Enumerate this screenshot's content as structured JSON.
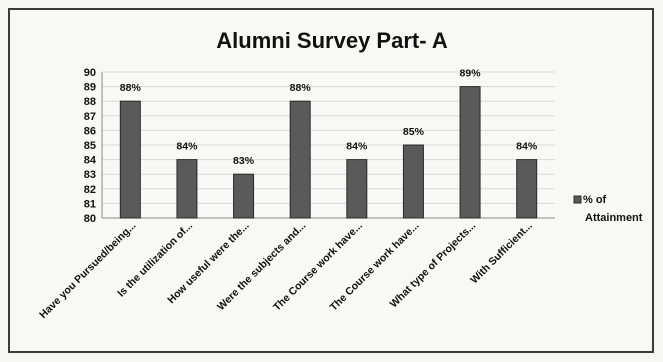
{
  "chart_data": {
    "type": "bar",
    "title": "Alumni Survey Part- A",
    "xlabel": "",
    "ylabel": "",
    "ylim": [
      80,
      90
    ],
    "yticks": [
      80,
      81,
      82,
      83,
      84,
      85,
      86,
      87,
      88,
      89,
      90
    ],
    "grid": true,
    "legend_position": "right",
    "categories": [
      "Have you Pursued/being...",
      "Is the utilization of...",
      "How useful were the...",
      "Were the subjects and...",
      "The Course work have...",
      "The Course work have...",
      "What type of Projects...",
      "With Sufficient..."
    ],
    "series": [
      {
        "name": "% of Attainment",
        "values": [
          88,
          84,
          83,
          88,
          84,
          85,
          89,
          84
        ],
        "labels": [
          "88%",
          "84%",
          "83%",
          "88%",
          "84%",
          "85%",
          "89%",
          "84%"
        ]
      }
    ],
    "legend_lines": [
      "% of",
      "Attainment"
    ],
    "colors": {
      "bar": "#5a5a5a",
      "bar_edge": "#2a2a2a",
      "grid": "#d9d9d9",
      "axis": "#8a8a8a"
    }
  }
}
